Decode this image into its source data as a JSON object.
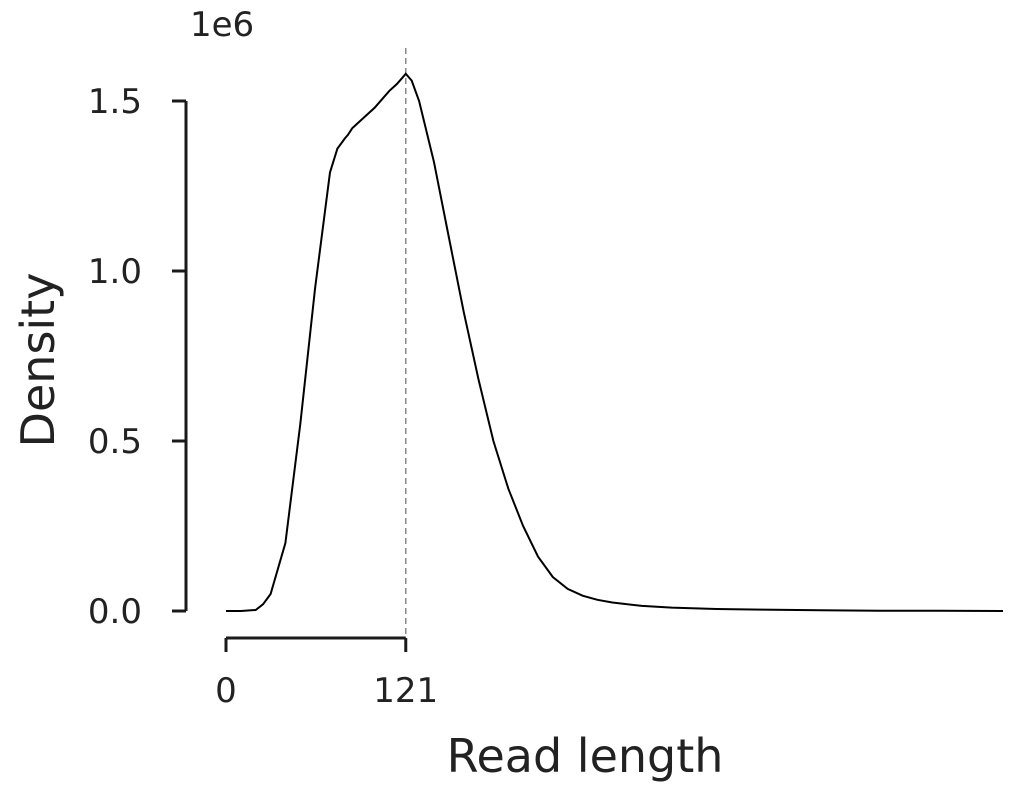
{
  "chart_data": {
    "type": "line",
    "xlabel": "Read length",
    "ylabel": "Density",
    "y_scale_label": "1e6",
    "x_ticks": [
      0,
      121
    ],
    "x_tick_labels": [
      "0",
      "121"
    ],
    "y_ticks": [
      0.0,
      0.5,
      1.0,
      1.5
    ],
    "y_tick_labels": [
      "0.0",
      "0.5",
      "1.0",
      "1.5"
    ],
    "ylim": [
      0,
      1.6
    ],
    "xlim": [
      0,
      523
    ],
    "vline_x": 121,
    "grid": false,
    "series": [
      {
        "x": [
          0,
          10,
          20,
          25,
          30,
          40,
          50,
          60,
          70,
          75,
          80,
          82,
          85,
          90,
          100,
          110,
          115,
          121,
          125,
          130,
          140,
          150,
          160,
          170,
          180,
          190,
          200,
          210,
          220,
          230,
          240,
          250,
          260,
          280,
          300,
          330,
          360,
          400,
          440,
          480,
          523
        ],
        "y": [
          0.0,
          0.0,
          0.003,
          0.02,
          0.05,
          0.2,
          0.55,
          0.95,
          1.29,
          1.36,
          1.39,
          1.4,
          1.42,
          1.44,
          1.48,
          1.53,
          1.55,
          1.58,
          1.56,
          1.5,
          1.32,
          1.1,
          0.88,
          0.68,
          0.5,
          0.36,
          0.25,
          0.16,
          0.1,
          0.065,
          0.045,
          0.033,
          0.025,
          0.015,
          0.01,
          0.006,
          0.004,
          0.002,
          0.001,
          0.0005,
          0.0
        ]
      }
    ]
  }
}
